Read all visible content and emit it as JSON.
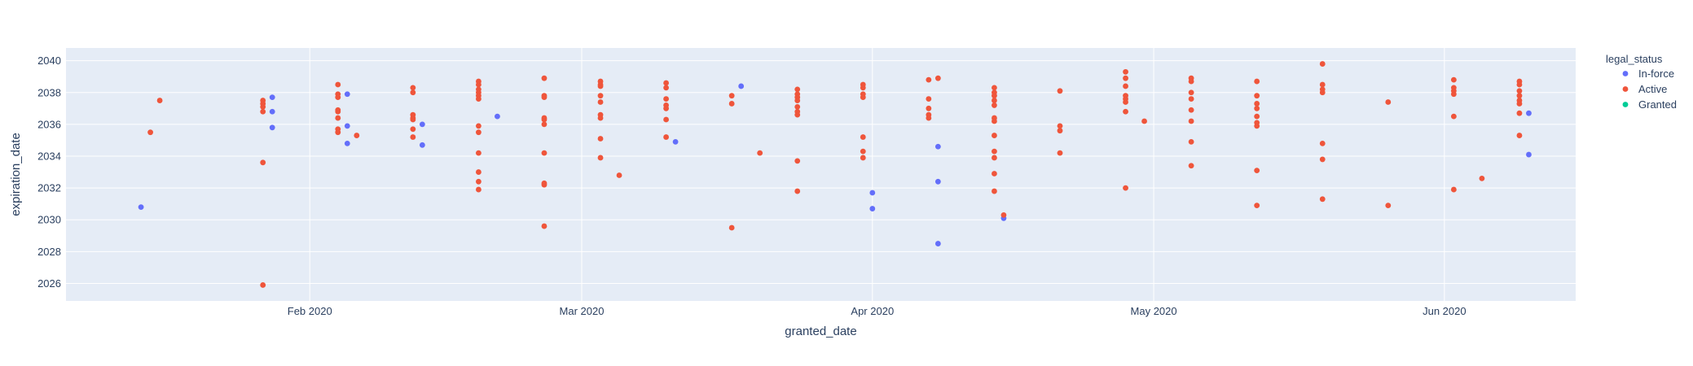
{
  "chart_data": {
    "type": "scatter",
    "title": "",
    "xlabel": "granted_date",
    "ylabel": "expiration_date",
    "x_range": [
      "2020-01-06",
      "2020-06-15"
    ],
    "y_range": [
      2024.9,
      2040.8
    ],
    "x_ticks": [
      {
        "date": "2020-02-01",
        "label": "Feb 2020"
      },
      {
        "date": "2020-03-01",
        "label": "Mar 2020"
      },
      {
        "date": "2020-04-01",
        "label": "Apr 2020"
      },
      {
        "date": "2020-05-01",
        "label": "May 2020"
      },
      {
        "date": "2020-06-01",
        "label": "Jun 2020"
      }
    ],
    "y_ticks": [
      2026,
      2028,
      2030,
      2032,
      2034,
      2036,
      2038,
      2040
    ],
    "grid": true,
    "legend_position": "right",
    "legend_title": "legal_status",
    "colors": {
      "plot_bg": "#e5ecf6",
      "grid": "#ffffff",
      "text": "#2a3f5f"
    },
    "series": [
      {
        "name": "In-force",
        "color": "#636efa",
        "points": [
          [
            "2020-01-14",
            2030.8
          ],
          [
            "2020-01-28",
            2037.7
          ],
          [
            "2020-01-28",
            2036.8
          ],
          [
            "2020-01-28",
            2035.8
          ],
          [
            "2020-02-05",
            2037.9
          ],
          [
            "2020-02-05",
            2035.9
          ],
          [
            "2020-02-05",
            2034.8
          ],
          [
            "2020-02-13",
            2036.0
          ],
          [
            "2020-02-13",
            2034.7
          ],
          [
            "2020-02-21",
            2036.5
          ],
          [
            "2020-03-11",
            2034.9
          ],
          [
            "2020-03-18",
            2038.4
          ],
          [
            "2020-04-01",
            2031.7
          ],
          [
            "2020-04-01",
            2030.7
          ],
          [
            "2020-04-08",
            2034.6
          ],
          [
            "2020-04-08",
            2032.4
          ],
          [
            "2020-04-08",
            2028.5
          ],
          [
            "2020-04-15",
            2030.1
          ],
          [
            "2020-06-10",
            2036.7
          ],
          [
            "2020-06-10",
            2034.1
          ]
        ]
      },
      {
        "name": "Active",
        "color": "#ef553b",
        "points": [
          [
            "2020-01-15",
            2035.5
          ],
          [
            "2020-01-16",
            2037.5
          ],
          [
            "2020-01-27",
            2037.5
          ],
          [
            "2020-01-27",
            2037.3
          ],
          [
            "2020-01-27",
            2037.1
          ],
          [
            "2020-01-27",
            2036.8
          ],
          [
            "2020-01-27",
            2033.6
          ],
          [
            "2020-01-27",
            2025.9
          ],
          [
            "2020-02-04",
            2038.5
          ],
          [
            "2020-02-04",
            2037.9
          ],
          [
            "2020-02-04",
            2037.7
          ],
          [
            "2020-02-04",
            2036.9
          ],
          [
            "2020-02-04",
            2036.8
          ],
          [
            "2020-02-04",
            2036.4
          ],
          [
            "2020-02-04",
            2035.7
          ],
          [
            "2020-02-04",
            2035.5
          ],
          [
            "2020-02-06",
            2035.3
          ],
          [
            "2020-02-12",
            2038.3
          ],
          [
            "2020-02-12",
            2038.0
          ],
          [
            "2020-02-12",
            2036.6
          ],
          [
            "2020-02-12",
            2036.4
          ],
          [
            "2020-02-12",
            2036.3
          ],
          [
            "2020-02-12",
            2035.7
          ],
          [
            "2020-02-12",
            2035.2
          ],
          [
            "2020-02-19",
            2038.7
          ],
          [
            "2020-02-19",
            2038.5
          ],
          [
            "2020-02-19",
            2038.2
          ],
          [
            "2020-02-19",
            2038.0
          ],
          [
            "2020-02-19",
            2037.8
          ],
          [
            "2020-02-19",
            2037.6
          ],
          [
            "2020-02-19",
            2035.9
          ],
          [
            "2020-02-19",
            2035.5
          ],
          [
            "2020-02-19",
            2034.2
          ],
          [
            "2020-02-19",
            2033.0
          ],
          [
            "2020-02-19",
            2032.4
          ],
          [
            "2020-02-19",
            2031.9
          ],
          [
            "2020-02-26",
            2038.9
          ],
          [
            "2020-02-26",
            2037.8
          ],
          [
            "2020-02-26",
            2037.7
          ],
          [
            "2020-02-26",
            2036.4
          ],
          [
            "2020-02-26",
            2036.3
          ],
          [
            "2020-02-26",
            2036.0
          ],
          [
            "2020-02-26",
            2034.2
          ],
          [
            "2020-02-26",
            2032.3
          ],
          [
            "2020-02-26",
            2032.2
          ],
          [
            "2020-02-26",
            2029.6
          ],
          [
            "2020-03-03",
            2038.7
          ],
          [
            "2020-03-03",
            2038.5
          ],
          [
            "2020-03-03",
            2038.4
          ],
          [
            "2020-03-03",
            2037.8
          ],
          [
            "2020-03-03",
            2037.4
          ],
          [
            "2020-03-03",
            2036.6
          ],
          [
            "2020-03-03",
            2036.4
          ],
          [
            "2020-03-03",
            2035.1
          ],
          [
            "2020-03-03",
            2033.9
          ],
          [
            "2020-03-05",
            2032.8
          ],
          [
            "2020-03-10",
            2038.6
          ],
          [
            "2020-03-10",
            2038.3
          ],
          [
            "2020-03-10",
            2037.6
          ],
          [
            "2020-03-10",
            2037.2
          ],
          [
            "2020-03-10",
            2037.0
          ],
          [
            "2020-03-10",
            2036.3
          ],
          [
            "2020-03-10",
            2035.2
          ],
          [
            "2020-03-17",
            2037.8
          ],
          [
            "2020-03-17",
            2037.3
          ],
          [
            "2020-03-17",
            2029.5
          ],
          [
            "2020-03-20",
            2034.2
          ],
          [
            "2020-03-24",
            2038.2
          ],
          [
            "2020-03-24",
            2037.9
          ],
          [
            "2020-03-24",
            2037.7
          ],
          [
            "2020-03-24",
            2037.5
          ],
          [
            "2020-03-24",
            2037.1
          ],
          [
            "2020-03-24",
            2036.8
          ],
          [
            "2020-03-24",
            2036.6
          ],
          [
            "2020-03-24",
            2033.7
          ],
          [
            "2020-03-24",
            2031.8
          ],
          [
            "2020-03-31",
            2038.5
          ],
          [
            "2020-03-31",
            2038.3
          ],
          [
            "2020-03-31",
            2037.9
          ],
          [
            "2020-03-31",
            2037.7
          ],
          [
            "2020-03-31",
            2035.2
          ],
          [
            "2020-03-31",
            2034.3
          ],
          [
            "2020-03-31",
            2033.9
          ],
          [
            "2020-04-07",
            2038.8
          ],
          [
            "2020-04-07",
            2037.6
          ],
          [
            "2020-04-07",
            2037.0
          ],
          [
            "2020-04-07",
            2036.6
          ],
          [
            "2020-04-07",
            2036.4
          ],
          [
            "2020-04-08",
            2038.9
          ],
          [
            "2020-04-14",
            2038.3
          ],
          [
            "2020-04-14",
            2038.0
          ],
          [
            "2020-04-14",
            2037.8
          ],
          [
            "2020-04-14",
            2037.5
          ],
          [
            "2020-04-14",
            2037.2
          ],
          [
            "2020-04-14",
            2036.4
          ],
          [
            "2020-04-14",
            2036.2
          ],
          [
            "2020-04-14",
            2035.3
          ],
          [
            "2020-04-14",
            2034.3
          ],
          [
            "2020-04-14",
            2033.9
          ],
          [
            "2020-04-14",
            2032.9
          ],
          [
            "2020-04-14",
            2031.8
          ],
          [
            "2020-04-15",
            2030.3
          ],
          [
            "2020-04-21",
            2038.1
          ],
          [
            "2020-04-21",
            2035.9
          ],
          [
            "2020-04-21",
            2035.6
          ],
          [
            "2020-04-21",
            2034.2
          ],
          [
            "2020-04-28",
            2039.3
          ],
          [
            "2020-04-28",
            2038.9
          ],
          [
            "2020-04-28",
            2038.4
          ],
          [
            "2020-04-28",
            2037.8
          ],
          [
            "2020-04-28",
            2037.6
          ],
          [
            "2020-04-28",
            2037.4
          ],
          [
            "2020-04-28",
            2036.8
          ],
          [
            "2020-04-28",
            2032.0
          ],
          [
            "2020-04-30",
            2036.2
          ],
          [
            "2020-05-05",
            2038.9
          ],
          [
            "2020-05-05",
            2038.7
          ],
          [
            "2020-05-05",
            2038.0
          ],
          [
            "2020-05-05",
            2037.6
          ],
          [
            "2020-05-05",
            2036.9
          ],
          [
            "2020-05-05",
            2036.2
          ],
          [
            "2020-05-05",
            2034.9
          ],
          [
            "2020-05-05",
            2033.4
          ],
          [
            "2020-05-12",
            2038.7
          ],
          [
            "2020-05-12",
            2037.8
          ],
          [
            "2020-05-12",
            2037.3
          ],
          [
            "2020-05-12",
            2037.0
          ],
          [
            "2020-05-12",
            2036.5
          ],
          [
            "2020-05-12",
            2036.1
          ],
          [
            "2020-05-12",
            2035.9
          ],
          [
            "2020-05-12",
            2033.1
          ],
          [
            "2020-05-12",
            2030.9
          ],
          [
            "2020-05-19",
            2039.8
          ],
          [
            "2020-05-19",
            2038.5
          ],
          [
            "2020-05-19",
            2038.2
          ],
          [
            "2020-05-19",
            2038.0
          ],
          [
            "2020-05-19",
            2034.8
          ],
          [
            "2020-05-19",
            2033.8
          ],
          [
            "2020-05-19",
            2031.3
          ],
          [
            "2020-05-26",
            2037.4
          ],
          [
            "2020-05-26",
            2030.9
          ],
          [
            "2020-06-02",
            2038.8
          ],
          [
            "2020-06-02",
            2038.3
          ],
          [
            "2020-06-02",
            2038.1
          ],
          [
            "2020-06-02",
            2037.9
          ],
          [
            "2020-06-02",
            2036.5
          ],
          [
            "2020-06-02",
            2031.9
          ],
          [
            "2020-06-05",
            2032.6
          ],
          [
            "2020-06-09",
            2038.7
          ],
          [
            "2020-06-09",
            2038.5
          ],
          [
            "2020-06-09",
            2038.1
          ],
          [
            "2020-06-09",
            2037.8
          ],
          [
            "2020-06-09",
            2037.5
          ],
          [
            "2020-06-09",
            2037.3
          ],
          [
            "2020-06-09",
            2036.7
          ],
          [
            "2020-06-09",
            2035.3
          ]
        ]
      },
      {
        "name": "Granted",
        "color": "#00cc96",
        "points": []
      }
    ]
  }
}
